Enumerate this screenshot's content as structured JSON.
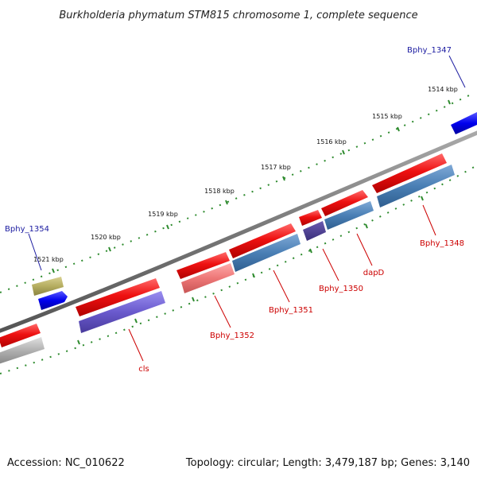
{
  "title": "Burkholderia phymatum STM815 chromosome 1, complete sequence",
  "footer": {
    "accession": "Accession: NC_010622",
    "summary": "Topology: circular; Length: 3,479,187 bp; Genes: 3,140"
  },
  "ticks": [
    "1514 kbp",
    "1515 kbp",
    "1516 kbp",
    "1517 kbp",
    "1518 kbp",
    "1519 kbp",
    "1520 kbp",
    "1521 kbp"
  ],
  "genes": {
    "bphy_1347": "Bphy_1347",
    "bphy_1348": "Bphy_1348",
    "dapD": "dapD",
    "bphy_1350": "Bphy_1350",
    "bphy_1351": "Bphy_1351",
    "bphy_1352": "Bphy_1352",
    "cls": "cls",
    "bphy_1354": "Bphy_1354"
  },
  "colors": {
    "forward_strand": "#ee1111",
    "cds_steelblue": "#4a7fb5",
    "cds_purple": "#6a5acd",
    "cds_pink": "#ee7777",
    "cds_gray": "#aaaaaa",
    "cds_olive": "#b5ad60",
    "reverse_blue": "#0000ee",
    "backbone": "#777777",
    "ruler_dots": "#2e8b2e",
    "label_red": "#cc0000",
    "label_blue": "#1a1aa0"
  }
}
